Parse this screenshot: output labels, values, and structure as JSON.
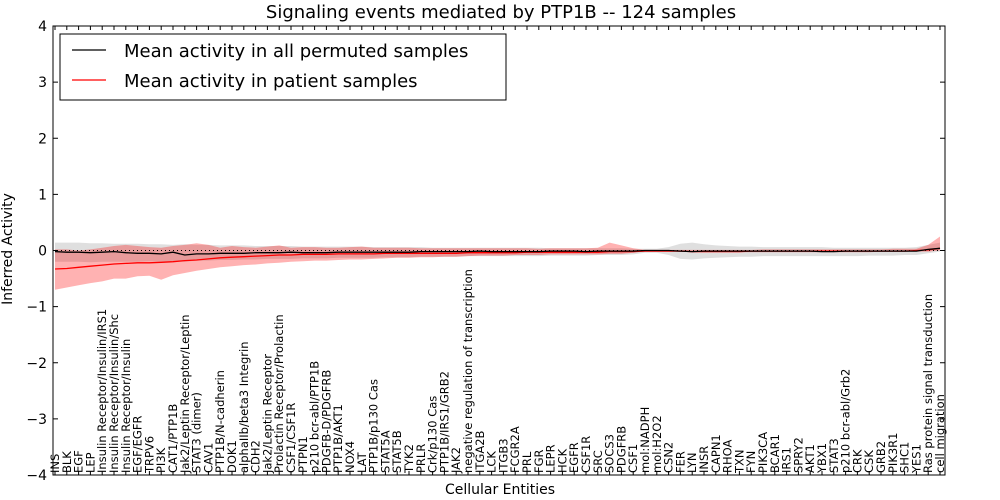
{
  "chart_data": {
    "type": "line",
    "title": "Signaling events mediated by PTP1B -- 124 samples",
    "xlabel": "Cellular Entities",
    "ylabel": "Inferred Activity",
    "ylim": [
      -4,
      4
    ],
    "yticks": [
      "4",
      "3",
      "2",
      "1",
      "0",
      "−1",
      "−2",
      "−3",
      "−4"
    ],
    "legend_position": "top-left",
    "categories": [
      "INS",
      "BLK",
      "EGF",
      "LEP",
      "Insulin Receptor/Insulin/IRS1",
      "Insulin Receptor/Insulin/Shc",
      "Insulin Receptor/Insulin",
      "EGF/EGFR",
      "TRPV6",
      "PI3K",
      "CAT1/PTP1B",
      "Jak2/Leptin Receptor/Leptin",
      "STAT3 (dimer)",
      "CAV1",
      "PTP1B/N-cadherin",
      "DOK1",
      "alphaIIb/beta3 Integrin",
      "CDH2",
      "Jak2/Leptin Receptor",
      "Prolactin Receptor/Prolactin",
      "CSF1/CSF1R",
      "PTPN1",
      "p210 bcr-abl/PTP1B",
      "PDGFB-D/PDGFRB",
      "PTP1B/AKT1",
      "NOX4",
      "LAT",
      "PTP1B/p130 Cas",
      "STAT5A",
      "STAT5B",
      "TYK2",
      "PRLR",
      "Crk/p130 Cas",
      "PTP1B/IRS1/GRB2",
      "JAK2",
      "negative regulation of transcription",
      "ITGA2B",
      "LCK",
      "ITGB3",
      "FCGR2A",
      "PRL",
      "FGR",
      "LEPR",
      "HCK",
      "EGFR",
      "CSF1R",
      "SRC",
      "SOCS3",
      "PDGFRB",
      "CSF1",
      "mol:NADPH",
      "mol:H2O2",
      "CSN2",
      "FER",
      "LYN",
      "INSR",
      "CAPN1",
      "RHOA",
      "TXN",
      "FYN",
      "PIK3CA",
      "BCAR1",
      "IRS1",
      "SPRY2",
      "AKT1",
      "YBX1",
      "STAT3",
      "p210 bcr-abl/Grb2",
      "CRK",
      "CSK",
      "GRB2",
      "PIK3R1",
      "SHC1",
      "YES1",
      "Ras protein signal transduction",
      "cell migration"
    ],
    "series": [
      {
        "name": "Mean activity in all permuted samples",
        "color": "#000000",
        "values": [
          -0.02,
          -0.03,
          -0.03,
          -0.04,
          -0.03,
          -0.02,
          -0.04,
          -0.05,
          -0.05,
          -0.06,
          -0.03,
          -0.08,
          -0.06,
          -0.06,
          -0.05,
          -0.05,
          -0.05,
          -0.04,
          -0.04,
          -0.04,
          -0.03,
          -0.04,
          -0.04,
          -0.04,
          -0.03,
          -0.03,
          -0.03,
          -0.03,
          -0.03,
          -0.03,
          -0.03,
          -0.02,
          -0.02,
          -0.02,
          -0.02,
          -0.02,
          -0.01,
          -0.02,
          -0.02,
          -0.02,
          -0.02,
          -0.02,
          -0.01,
          -0.01,
          -0.01,
          -0.02,
          -0.01,
          -0.01,
          -0.01,
          -0.01,
          0.0,
          0.0,
          0.0,
          -0.01,
          -0.02,
          -0.01,
          -0.01,
          -0.01,
          -0.01,
          -0.01,
          -0.01,
          -0.01,
          -0.01,
          -0.01,
          -0.01,
          -0.02,
          -0.02,
          -0.01,
          -0.01,
          -0.01,
          -0.01,
          -0.01,
          -0.01,
          -0.01,
          0.02,
          0.04
        ],
        "band_low": [
          -0.2,
          -0.2,
          -0.2,
          -0.21,
          -0.2,
          -0.2,
          -0.2,
          -0.2,
          -0.19,
          -0.2,
          -0.19,
          -0.2,
          -0.18,
          -0.18,
          -0.17,
          -0.17,
          -0.16,
          -0.16,
          -0.15,
          -0.15,
          -0.15,
          -0.14,
          -0.14,
          -0.14,
          -0.13,
          -0.13,
          -0.13,
          -0.13,
          -0.12,
          -0.12,
          -0.12,
          -0.11,
          -0.11,
          -0.11,
          -0.11,
          -0.1,
          -0.1,
          -0.1,
          -0.1,
          -0.1,
          -0.1,
          -0.1,
          -0.09,
          -0.09,
          -0.09,
          -0.09,
          -0.08,
          -0.08,
          -0.08,
          -0.07,
          -0.04,
          -0.04,
          -0.08,
          -0.15,
          -0.16,
          -0.14,
          -0.13,
          -0.12,
          -0.11,
          -0.11,
          -0.1,
          -0.1,
          -0.1,
          -0.1,
          -0.1,
          -0.1,
          -0.1,
          -0.1,
          -0.1,
          -0.09,
          -0.09,
          -0.09,
          -0.08,
          -0.08,
          -0.05,
          -0.02
        ],
        "band_high": [
          0.14,
          0.14,
          0.14,
          0.13,
          0.13,
          0.12,
          0.12,
          0.12,
          0.11,
          0.11,
          0.1,
          0.11,
          0.1,
          0.1,
          0.09,
          0.09,
          0.09,
          0.08,
          0.08,
          0.08,
          0.08,
          0.07,
          0.07,
          0.07,
          0.07,
          0.07,
          0.07,
          0.06,
          0.06,
          0.06,
          0.06,
          0.06,
          0.05,
          0.05,
          0.05,
          0.05,
          0.05,
          0.05,
          0.05,
          0.05,
          0.05,
          0.05,
          0.04,
          0.04,
          0.04,
          0.04,
          0.04,
          0.04,
          0.04,
          0.03,
          0.03,
          0.03,
          0.06,
          0.12,
          0.14,
          0.11,
          0.09,
          0.08,
          0.07,
          0.07,
          0.06,
          0.06,
          0.06,
          0.06,
          0.06,
          0.06,
          0.05,
          0.05,
          0.05,
          0.05,
          0.05,
          0.05,
          0.05,
          0.06,
          0.1,
          0.14
        ]
      },
      {
        "name": "Mean activity in patient samples",
        "color": "#ff0000",
        "values": [
          -0.33,
          -0.32,
          -0.3,
          -0.28,
          -0.26,
          -0.24,
          -0.23,
          -0.22,
          -0.22,
          -0.21,
          -0.2,
          -0.18,
          -0.17,
          -0.15,
          -0.13,
          -0.12,
          -0.11,
          -0.1,
          -0.09,
          -0.08,
          -0.08,
          -0.07,
          -0.07,
          -0.07,
          -0.06,
          -0.06,
          -0.06,
          -0.06,
          -0.05,
          -0.05,
          -0.05,
          -0.05,
          -0.05,
          -0.05,
          -0.05,
          -0.04,
          -0.04,
          -0.04,
          -0.04,
          -0.04,
          -0.03,
          -0.03,
          -0.03,
          -0.03,
          -0.03,
          -0.03,
          -0.03,
          -0.02,
          -0.02,
          -0.02,
          -0.01,
          -0.01,
          -0.01,
          -0.01,
          -0.02,
          -0.02,
          -0.02,
          -0.02,
          -0.02,
          -0.01,
          -0.01,
          -0.01,
          -0.01,
          -0.01,
          -0.01,
          -0.01,
          -0.01,
          -0.01,
          -0.01,
          -0.01,
          -0.01,
          -0.01,
          -0.01,
          0.0,
          0.01,
          0.04
        ],
        "band_low": [
          -0.7,
          -0.66,
          -0.62,
          -0.58,
          -0.55,
          -0.5,
          -0.5,
          -0.46,
          -0.45,
          -0.52,
          -0.44,
          -0.4,
          -0.36,
          -0.33,
          -0.3,
          -0.28,
          -0.26,
          -0.25,
          -0.23,
          -0.22,
          -0.2,
          -0.19,
          -0.18,
          -0.18,
          -0.17,
          -0.16,
          -0.16,
          -0.15,
          -0.14,
          -0.13,
          -0.13,
          -0.12,
          -0.12,
          -0.11,
          -0.11,
          -0.1,
          -0.09,
          -0.09,
          -0.09,
          -0.08,
          -0.08,
          -0.08,
          -0.07,
          -0.07,
          -0.07,
          -0.07,
          -0.07,
          -0.06,
          -0.06,
          -0.04,
          -0.02,
          -0.02,
          -0.02,
          -0.02,
          -0.03,
          -0.03,
          -0.03,
          -0.03,
          -0.03,
          -0.03,
          -0.03,
          -0.03,
          -0.03,
          -0.03,
          -0.03,
          -0.03,
          -0.03,
          -0.03,
          -0.03,
          -0.03,
          -0.02,
          -0.02,
          -0.02,
          -0.02,
          -0.02,
          0.0
        ],
        "band_high": [
          0.02,
          0.02,
          0.0,
          0.02,
          0.05,
          0.08,
          0.1,
          0.08,
          0.06,
          0.05,
          0.08,
          0.1,
          0.13,
          0.1,
          0.05,
          0.08,
          0.06,
          0.05,
          0.07,
          0.09,
          0.05,
          0.06,
          0.06,
          0.05,
          0.05,
          0.06,
          0.07,
          0.05,
          0.05,
          0.05,
          0.05,
          0.04,
          0.04,
          0.04,
          0.04,
          0.04,
          0.04,
          0.04,
          0.04,
          0.04,
          0.04,
          0.03,
          0.04,
          0.04,
          0.04,
          0.04,
          0.05,
          0.14,
          0.09,
          0.04,
          0.01,
          0.01,
          0.01,
          0.01,
          0.01,
          0.01,
          0.01,
          0.01,
          0.01,
          0.01,
          0.02,
          0.02,
          0.02,
          0.02,
          0.02,
          0.02,
          0.02,
          0.02,
          0.02,
          0.02,
          0.02,
          0.03,
          0.03,
          0.03,
          0.1,
          0.25
        ]
      }
    ],
    "reference_line": {
      "y": 0,
      "style": "dotted"
    }
  }
}
